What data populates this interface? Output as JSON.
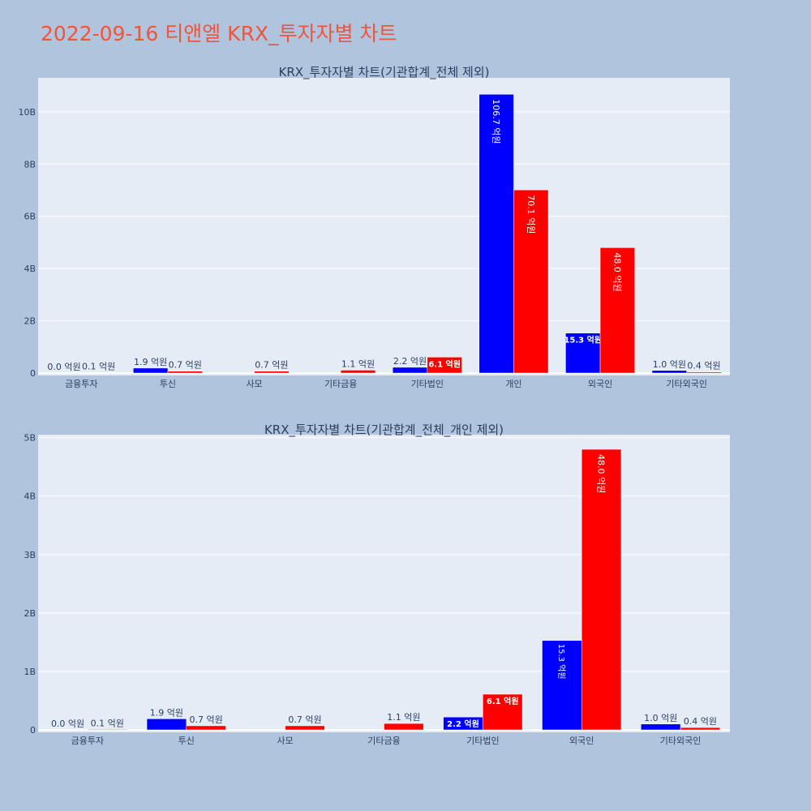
{
  "page_title": "2022-09-16 티앤엘 KRX_투자자별 차트",
  "colors": {
    "buy": "#0000ff",
    "sell": "#ff0000",
    "plot_bg": "#e5ecf6",
    "page_bg": "#b0c4de",
    "title": "#ef553b"
  },
  "chart_data": [
    {
      "type": "bar",
      "title": "KRX_투자자별 차트(기관합계_전체 제외)",
      "categories": [
        "금융투자",
        "투신",
        "사모",
        "기타금융",
        "기타법인",
        "개인",
        "외국인",
        "기타외국인"
      ],
      "ylim": [
        0,
        11.3
      ],
      "yticks": [
        0,
        2,
        4,
        6,
        8,
        10
      ],
      "ytick_labels": [
        "0",
        "2B",
        "4B",
        "6B",
        "8B",
        "10B"
      ],
      "grid": true,
      "series": [
        {
          "color": "#0000ff",
          "values": [
            0.0,
            0.19,
            0,
            0,
            0.22,
            10.67,
            1.53,
            0.1
          ],
          "labels": [
            "0.0 억원",
            "1.9 억원",
            "",
            "",
            "2.2 억원",
            "106.7 억원",
            "15.3 억원",
            "1.0 억원"
          ]
        },
        {
          "color": "#ff0000",
          "values": [
            0.01,
            0.07,
            0.07,
            0.11,
            0.61,
            7.01,
            4.8,
            0.04
          ],
          "labels": [
            "0.1 억원",
            "0.7 억원",
            "0.7 억원",
            "1.1 억원",
            "6.1 억원",
            "70.1 억원",
            "48.0 억원",
            "0.4 억원"
          ]
        }
      ]
    },
    {
      "type": "bar",
      "title": "KRX_투자자별 차트(기관합계_전체_개인 제외)",
      "categories": [
        "금융투자",
        "투신",
        "사모",
        "기타금융",
        "기타법인",
        "외국인",
        "기타외국인"
      ],
      "ylim": [
        0,
        5.05
      ],
      "yticks": [
        0,
        1,
        2,
        3,
        4,
        5
      ],
      "ytick_labels": [
        "0",
        "1B",
        "2B",
        "3B",
        "4B",
        "5B"
      ],
      "grid": true,
      "series": [
        {
          "color": "#0000ff",
          "values": [
            0.0,
            0.19,
            0,
            0,
            0.22,
            1.53,
            0.1
          ],
          "labels": [
            "0.0 억원",
            "1.9 억원",
            "",
            "",
            "2.2 억원",
            "15.3 억원",
            "1.0 억원"
          ]
        },
        {
          "color": "#ff0000",
          "values": [
            0.01,
            0.07,
            0.07,
            0.11,
            0.61,
            4.8,
            0.04
          ],
          "labels": [
            "0.1 억원",
            "0.7 억원",
            "0.7 억원",
            "1.1 억원",
            "6.1 억원",
            "48.0 억원",
            "0.4 억원"
          ]
        }
      ]
    }
  ]
}
